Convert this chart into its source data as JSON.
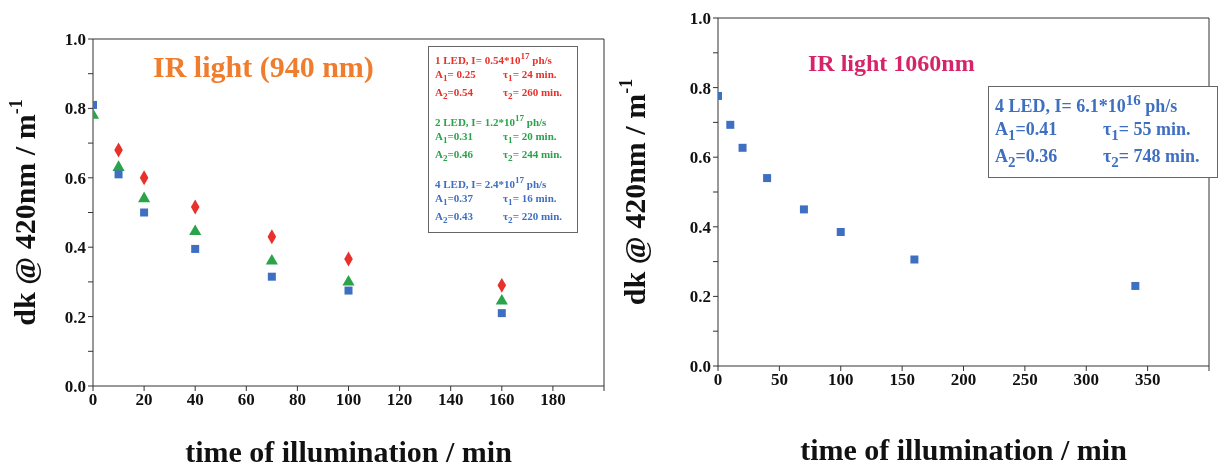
{
  "chart_data": [
    {
      "type": "scatter",
      "title": "IR light (940 nm)",
      "xlabel": "time of illumination / min",
      "ylabel": "dk @ 420nm / m$^{-1}$",
      "x": [
        0,
        10,
        20,
        40,
        70,
        100,
        160
      ],
      "series": [
        {
          "name": "1 LED, I= 0.54*10$^{17}$ ph/s",
          "color": "#e8312a",
          "marker": "diamond",
          "values": [
            null,
            0.68,
            0.6,
            0.516,
            0.43,
            0.366,
            0.29
          ]
        },
        {
          "name": "2 LED, I= 1.2*10$^{17}$ ph/s",
          "color": "#2aa34a",
          "marker": "triangle",
          "values": [
            0.78,
            0.63,
            0.54,
            0.445,
            0.36,
            0.3,
            0.245
          ]
        },
        {
          "name": "4 LED, I= 2.4*10$^{17}$ ph/s",
          "color": "#3f6fc0",
          "marker": "square",
          "values": [
            0.81,
            0.61,
            0.5,
            0.395,
            0.315,
            0.275,
            0.21
          ]
        }
      ],
      "annotations": [
        "A$_{1}$= 0.25",
        "τ$_{1}$= 24 min.",
        "A$_{2}$=0.54",
        "τ$_{2}$= 260 min.",
        "A$_{1}$=0.31",
        "τ$_{1}$= 20 min.",
        "A$_{2}$=0.46",
        "τ$_{2}$= 244 min.",
        "A$_{1}$=0.37",
        "τ$_{1}$= 16 min.",
        "A$_{2}$=0.43",
        "τ$_{2}$= 220 min."
      ],
      "xlim": [
        0,
        200
      ],
      "xticks": [
        0,
        20,
        40,
        60,
        80,
        100,
        120,
        140,
        160,
        180,
        {
          "value": 200,
          "label": null
        }
      ],
      "ylim": [
        0,
        1
      ],
      "yticks": [
        {
          "value": 0,
          "label": "0.0"
        },
        {
          "value": 0.1,
          "label": null
        },
        {
          "value": 0.2,
          "label": "0.2"
        },
        {
          "value": 0.3,
          "label": null
        },
        {
          "value": 0.4,
          "label": "0.4"
        },
        {
          "value": 0.5,
          "label": null
        },
        {
          "value": 0.6,
          "label": "0.6"
        },
        {
          "value": 0.7,
          "label": null
        },
        {
          "value": 0.8,
          "label": "0.8"
        },
        {
          "value": 0.9,
          "label": null
        },
        {
          "value": 1,
          "label": "1.0"
        }
      ],
      "grid": false,
      "legend": false
    },
    {
      "type": "scatter",
      "title": "IR light 1060nm",
      "xlabel": "time of illumination / min",
      "ylabel": "dk @ 420nm / m$^{-1}$",
      "x": [
        0,
        10,
        20,
        40,
        70,
        100,
        160,
        340
      ],
      "series": [
        {
          "name": "4 LED, I= 6.1*10$^{16}$ ph/s",
          "color": "#3f6fc0",
          "marker": "square",
          "values": [
            0.776,
            0.693,
            0.627,
            0.54,
            0.45,
            0.385,
            0.306,
            0.23
          ]
        }
      ],
      "annotations": [
        "A$_{1}$=0.41",
        "τ$_{1}$= 55 min.",
        "A$_{2}$=0.36",
        "τ$_{2}$= 748 min."
      ],
      "xlim": [
        0,
        400
      ],
      "xticks": [
        0,
        50,
        100,
        150,
        200,
        250,
        300,
        350,
        {
          "value": 400,
          "label": null
        }
      ],
      "ylim": [
        0,
        1
      ],
      "yticks": [
        {
          "value": 0,
          "label": "0.0"
        },
        {
          "value": 0.1,
          "label": null
        },
        {
          "value": 0.2,
          "label": "0.2"
        },
        {
          "value": 0.3,
          "label": null
        },
        {
          "value": 0.4,
          "label": "0.4"
        },
        {
          "value": 0.5,
          "label": null
        },
        {
          "value": 0.6,
          "label": "0.6"
        },
        {
          "value": 0.7,
          "label": null
        },
        {
          "value": 0.8,
          "label": "0.8"
        },
        {
          "value": 0.9,
          "label": null
        },
        {
          "value": 1,
          "label": "1.0"
        }
      ],
      "grid": false,
      "legend": false
    }
  ]
}
